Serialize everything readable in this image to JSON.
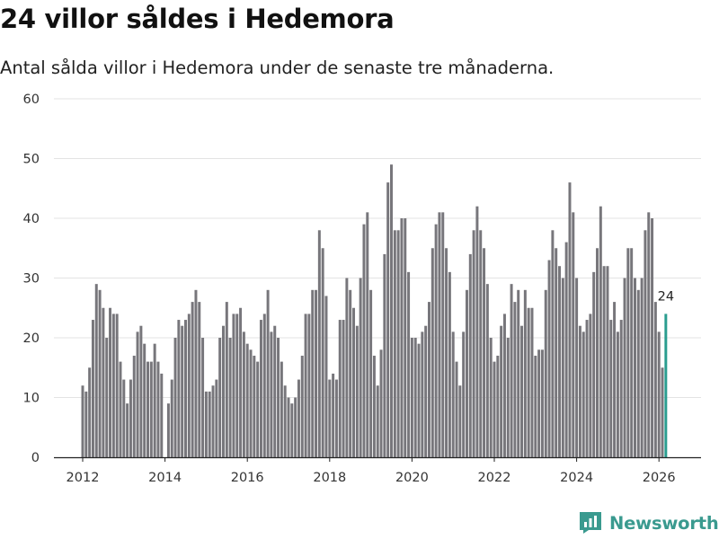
{
  "header": {
    "title": "24 villor såldes i Hedemora",
    "subtitle": "Antal sålda villor i Hedemora under de senaste tre månaderna."
  },
  "brand": {
    "name": "Newsworthy",
    "color": "#3a9a8f"
  },
  "chart_data": {
    "type": "bar",
    "title": "24 villor såldes i Hedemora",
    "xlabel": "",
    "ylabel": "",
    "ylim": [
      0,
      60
    ],
    "yticks": [
      0,
      10,
      20,
      30,
      40,
      50,
      60
    ],
    "xticks": [
      "2012",
      "2014",
      "2016",
      "2018",
      "2020",
      "2022",
      "2024",
      "2026"
    ],
    "x_start": "2012-01",
    "grid": true,
    "bar_color": "#77767b",
    "highlight_color": "#2a9d8f",
    "highlight_label": "24",
    "series": [
      {
        "name": "Sålda villor",
        "values": [
          12,
          11,
          15,
          23,
          29,
          28,
          25,
          20,
          25,
          24,
          24,
          16,
          13,
          9,
          13,
          17,
          21,
          22,
          19,
          16,
          16,
          19,
          16,
          14,
          0,
          9,
          13,
          20,
          23,
          22,
          23,
          24,
          26,
          28,
          26,
          20,
          11,
          11,
          12,
          13,
          20,
          22,
          26,
          20,
          24,
          24,
          25,
          21,
          19,
          18,
          17,
          16,
          23,
          24,
          28,
          21,
          22,
          20,
          16,
          12,
          10,
          9,
          10,
          13,
          17,
          24,
          24,
          28,
          28,
          38,
          35,
          27,
          13,
          14,
          13,
          23,
          23,
          30,
          28,
          25,
          22,
          30,
          39,
          41,
          28,
          17,
          12,
          18,
          34,
          46,
          49,
          38,
          38,
          40,
          40,
          31,
          20,
          20,
          19,
          21,
          22,
          26,
          35,
          39,
          41,
          41,
          35,
          31,
          21,
          16,
          12,
          21,
          28,
          34,
          38,
          42,
          38,
          35,
          29,
          20,
          16,
          17,
          22,
          24,
          20,
          29,
          26,
          28,
          22,
          28,
          25,
          25,
          17,
          18,
          18,
          28,
          33,
          38,
          35,
          32,
          30,
          36,
          46,
          41,
          30,
          22,
          21,
          23,
          24,
          31,
          35,
          42,
          32,
          32,
          23,
          26,
          21,
          23,
          30,
          35,
          35,
          30,
          28,
          30,
          38,
          41,
          40,
          26,
          21,
          15,
          24
        ]
      }
    ]
  }
}
